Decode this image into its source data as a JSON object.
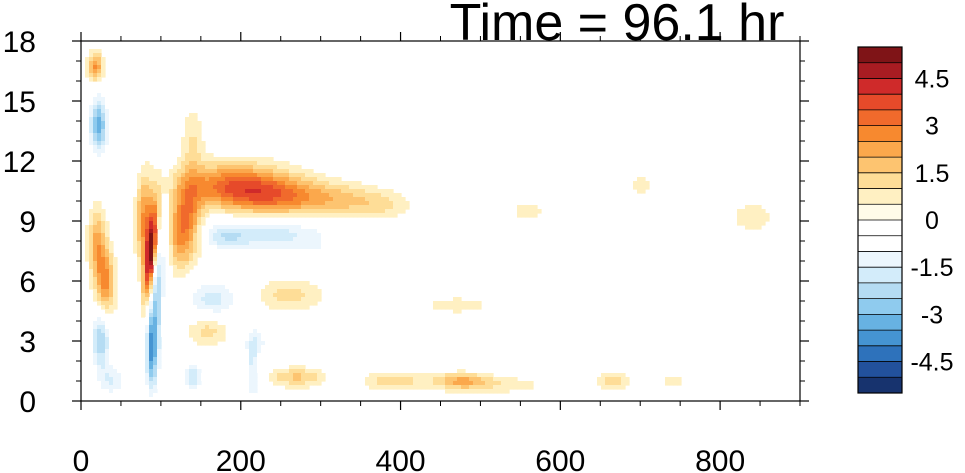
{
  "chart_data": {
    "type": "heatmap",
    "title": "Time = 96.1 hr",
    "xlabel": "",
    "ylabel": "",
    "xlim": [
      0,
      900
    ],
    "ylim": [
      0,
      18
    ],
    "x_ticks": [
      0,
      200,
      400,
      600,
      800
    ],
    "x_tick_labels": [
      "0",
      "200",
      "400",
      "600",
      "800"
    ],
    "y_ticks": [
      0,
      3,
      6,
      9,
      12,
      15,
      18
    ],
    "y_tick_labels": [
      "0",
      "3",
      "6",
      "9",
      "12",
      "15",
      "18"
    ],
    "colorbar": {
      "levels": [
        -5.5,
        -5,
        -4.5,
        -4,
        -3.5,
        -3,
        -2.5,
        -2,
        -1.5,
        -1,
        -0.5,
        0,
        0.5,
        1,
        1.5,
        2,
        2.5,
        3,
        3.5,
        4,
        4.5,
        5,
        5.5
      ],
      "labels": [
        "4.5",
        "3",
        "1.5",
        "0",
        "-1.5",
        "-3",
        "-4.5"
      ],
      "label_values": [
        4.5,
        3,
        1.5,
        0,
        -1.5,
        -3,
        -4.5
      ],
      "colors_top_to_bottom": [
        "#7f1417",
        "#a81c22",
        "#cf2a2a",
        "#e64a2a",
        "#f06a2c",
        "#f7892f",
        "#fba84c",
        "#fdc470",
        "#fedd97",
        "#fff0c2",
        "#fffbe8",
        "#ffffff",
        "#ffffff",
        "#ecf6fd",
        "#d3ecfa",
        "#b5dcf3",
        "#8fcbee",
        "#67b2e2",
        "#4594d2",
        "#2e72bb",
        "#22519c",
        "#17336e"
      ]
    },
    "features": [
      {
        "x": 88,
        "y": 7.5,
        "sx": 5,
        "sy": 1.7,
        "value": 5.2,
        "rot": -0.4
      },
      {
        "x": 80,
        "y": 9.0,
        "sx": 9,
        "sy": 1.6,
        "value": 2.8,
        "rot": 0
      },
      {
        "x": 95,
        "y": 5.0,
        "sx": 5,
        "sy": 2.2,
        "value": -2.0,
        "rot": 0
      },
      {
        "x": 88,
        "y": 2.6,
        "sx": 5,
        "sy": 1.5,
        "value": -3.5,
        "rot": 0
      },
      {
        "x": 100,
        "y": 8.0,
        "sx": 10,
        "sy": 1.8,
        "value": -1.2,
        "rot": 0
      },
      {
        "x": 190,
        "y": 10.8,
        "sx": 45,
        "sy": 0.8,
        "value": 3.0,
        "rot": 0
      },
      {
        "x": 250,
        "y": 10.2,
        "sx": 45,
        "sy": 0.7,
        "value": 2.5,
        "rot": 0
      },
      {
        "x": 135,
        "y": 9.0,
        "sx": 12,
        "sy": 1.4,
        "value": 2.6,
        "rot": 0
      },
      {
        "x": 120,
        "y": 8.2,
        "sx": 10,
        "sy": 1.3,
        "value": 1.8,
        "rot": 0
      },
      {
        "x": 240,
        "y": 8.4,
        "sx": 55,
        "sy": 0.6,
        "value": -1.8,
        "rot": 0
      },
      {
        "x": 180,
        "y": 8.2,
        "sx": 20,
        "sy": 0.5,
        "value": -1.2,
        "rot": 0
      },
      {
        "x": 340,
        "y": 7.4,
        "sx": 70,
        "sy": 0.4,
        "value": -0.8,
        "rot": 0
      },
      {
        "x": 330,
        "y": 10.0,
        "sx": 35,
        "sy": 0.6,
        "value": 1.2,
        "rot": 0
      },
      {
        "x": 380,
        "y": 9.8,
        "sx": 25,
        "sy": 0.5,
        "value": 0.8,
        "rot": 0
      },
      {
        "x": 30,
        "y": 5.8,
        "sx": 9,
        "sy": 1.3,
        "value": 2.8,
        "rot": 0
      },
      {
        "x": 20,
        "y": 8.0,
        "sx": 8,
        "sy": 1.2,
        "value": 2.0,
        "rot": 0
      },
      {
        "x": 25,
        "y": 3.2,
        "sx": 9,
        "sy": 1.2,
        "value": -2.6,
        "rot": 0
      },
      {
        "x": 22,
        "y": 13.8,
        "sx": 8,
        "sy": 1.0,
        "value": -3.2,
        "rot": 0
      },
      {
        "x": 18,
        "y": 16.7,
        "sx": 7,
        "sy": 0.5,
        "value": 2.6,
        "rot": 0
      },
      {
        "x": 55,
        "y": 11.5,
        "sx": 12,
        "sy": 2.5,
        "value": -0.8,
        "rot": 0
      },
      {
        "x": 140,
        "y": 13.0,
        "sx": 10,
        "sy": 1.2,
        "value": 1.0,
        "rot": 0
      },
      {
        "x": 165,
        "y": 5.0,
        "sx": 25,
        "sy": 0.8,
        "value": -1.8,
        "rot": 0
      },
      {
        "x": 160,
        "y": 3.6,
        "sx": 20,
        "sy": 0.6,
        "value": 1.5,
        "rot": 0
      },
      {
        "x": 260,
        "y": 5.3,
        "sx": 30,
        "sy": 0.6,
        "value": 1.2,
        "rot": 0
      },
      {
        "x": 240,
        "y": 3.0,
        "sx": 30,
        "sy": 0.5,
        "value": -1.0,
        "rot": 0
      },
      {
        "x": 215,
        "y": 1.6,
        "sx": 6,
        "sy": 1.4,
        "value": -1.6,
        "rot": 0
      },
      {
        "x": 140,
        "y": 1.2,
        "sx": 8,
        "sy": 0.6,
        "value": -2.0,
        "rot": 0
      },
      {
        "x": 270,
        "y": 1.2,
        "sx": 25,
        "sy": 0.35,
        "value": 1.6,
        "rot": 0
      },
      {
        "x": 390,
        "y": 1.0,
        "sx": 25,
        "sy": 0.3,
        "value": 1.5,
        "rot": 0
      },
      {
        "x": 475,
        "y": 1.0,
        "sx": 25,
        "sy": 0.3,
        "value": 2.0,
        "rot": 0
      },
      {
        "x": 530,
        "y": 0.8,
        "sx": 40,
        "sy": 0.3,
        "value": 0.8,
        "rot": 0
      },
      {
        "x": 665,
        "y": 1.0,
        "sx": 15,
        "sy": 0.3,
        "value": 1.3,
        "rot": 0
      },
      {
        "x": 740,
        "y": 1.0,
        "sx": 15,
        "sy": 0.3,
        "value": 0.7,
        "rot": 0
      },
      {
        "x": 470,
        "y": 4.8,
        "sx": 50,
        "sy": 0.5,
        "value": 0.6,
        "rot": 0
      },
      {
        "x": 840,
        "y": 9.2,
        "sx": 25,
        "sy": 0.7,
        "value": 0.7,
        "rot": 0
      },
      {
        "x": 700,
        "y": 10.8,
        "sx": 15,
        "sy": 0.6,
        "value": 0.6,
        "rot": 0
      },
      {
        "x": 560,
        "y": 9.5,
        "sx": 25,
        "sy": 0.6,
        "value": 0.6,
        "rot": 0
      },
      {
        "x": 600,
        "y": 2.5,
        "sx": 100,
        "sy": 0.3,
        "value": -0.6,
        "rot": 0
      },
      {
        "x": 780,
        "y": 3.0,
        "sx": 60,
        "sy": 0.3,
        "value": -0.6,
        "rot": 0
      },
      {
        "x": 205,
        "y": 16.0,
        "sx": 12,
        "sy": 2.0,
        "value": -0.8,
        "rot": 0
      },
      {
        "x": 40,
        "y": 1.0,
        "sx": 12,
        "sy": 0.6,
        "value": -1.4,
        "rot": 0
      }
    ]
  }
}
